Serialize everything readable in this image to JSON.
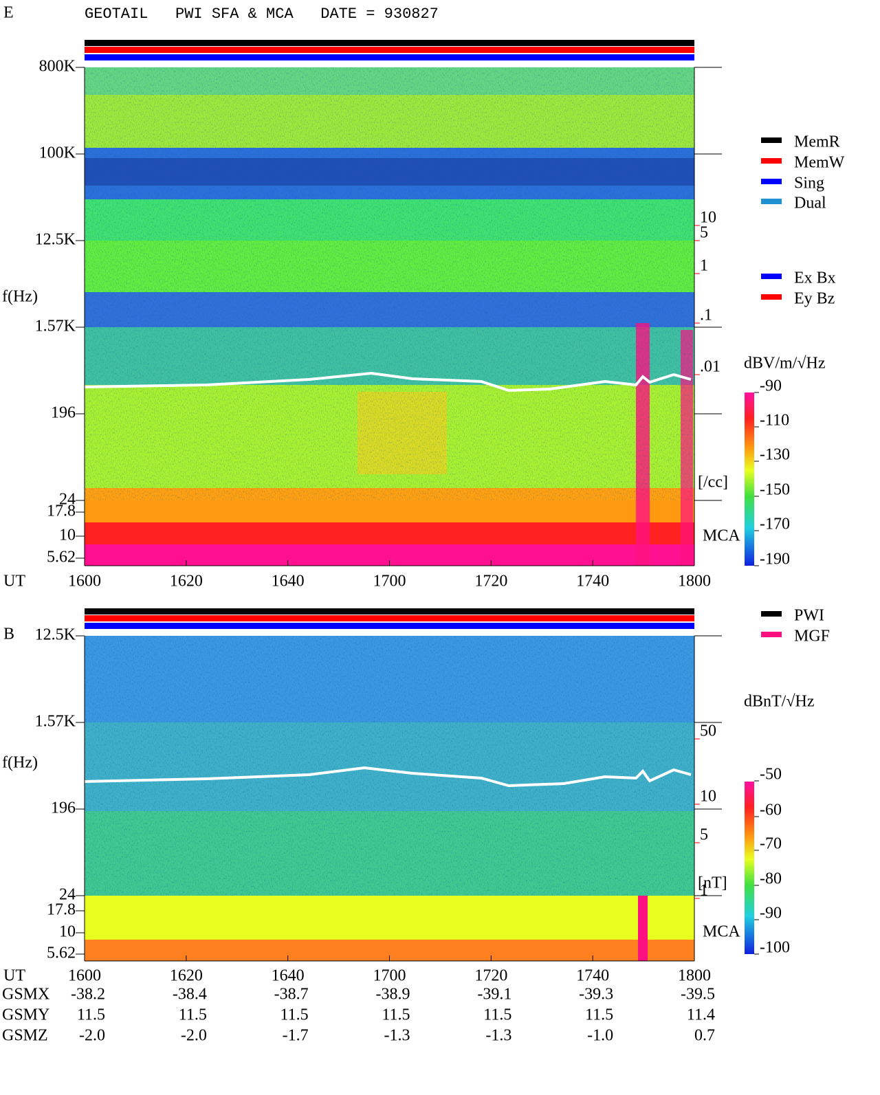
{
  "title": "GEOTAIL   PWI SFA & MCA   DATE = 930827",
  "panels": [
    {
      "component": "E",
      "freq_label": "f(Hz)",
      "freq_ticks": [
        "800K",
        "100K",
        "12.5K",
        "1.57K",
        "196",
        "24",
        "17.8",
        "10",
        "5.62"
      ],
      "density_ticks": [
        "10",
        "5",
        "1",
        ".1",
        ".01"
      ],
      "density_unit": "[/cc]",
      "mca_label": "MCA",
      "time_label": "UT",
      "time_ticks": [
        "1600",
        "1620",
        "1640",
        "1700",
        "1720",
        "1740",
        "1800"
      ],
      "colorbar_unit": "dBV/m/√Hz",
      "colorbar_ticks": [
        "-90",
        "-110",
        "-130",
        "-150",
        "-170",
        "-190"
      ]
    },
    {
      "component": "B",
      "freq_label": "f(Hz)",
      "freq_ticks": [
        "12.5K",
        "1.57K",
        "196",
        "24",
        "17.8",
        "10",
        "5.62"
      ],
      "density_ticks": [
        "50",
        "10",
        "5",
        "1"
      ],
      "density_unit": "[nT]",
      "mca_label": "MCA",
      "time_label": "UT",
      "time_ticks": [
        "1600",
        "1620",
        "1640",
        "1700",
        "1720",
        "1740",
        "1800"
      ],
      "colorbar_unit": "dBnT/√Hz",
      "colorbar_ticks": [
        "-50",
        "-60",
        "-70",
        "-80",
        "-90",
        "-100"
      ]
    }
  ],
  "legends": {
    "mode": [
      "MemR",
      "MemW",
      "Sing",
      "Dual"
    ],
    "antenna": [
      "Ex Bx",
      "Ey Bz"
    ],
    "instrument": [
      "PWI",
      "MGF"
    ]
  },
  "ephemeris": [
    {
      "label": "GSMX",
      "values": [
        "-38.2",
        "-38.4",
        "-38.7",
        "-38.9",
        "-39.1",
        "-39.3",
        "-39.5"
      ]
    },
    {
      "label": "GSMY",
      "values": [
        "11.5",
        "11.5",
        "11.5",
        "11.5",
        "11.5",
        "11.5",
        "11.4"
      ]
    },
    {
      "label": "GSMZ",
      "values": [
        "-2.0",
        "-2.0",
        "-1.7",
        "-1.3",
        "-1.3",
        "-1.0",
        "0.7"
      ]
    }
  ]
}
